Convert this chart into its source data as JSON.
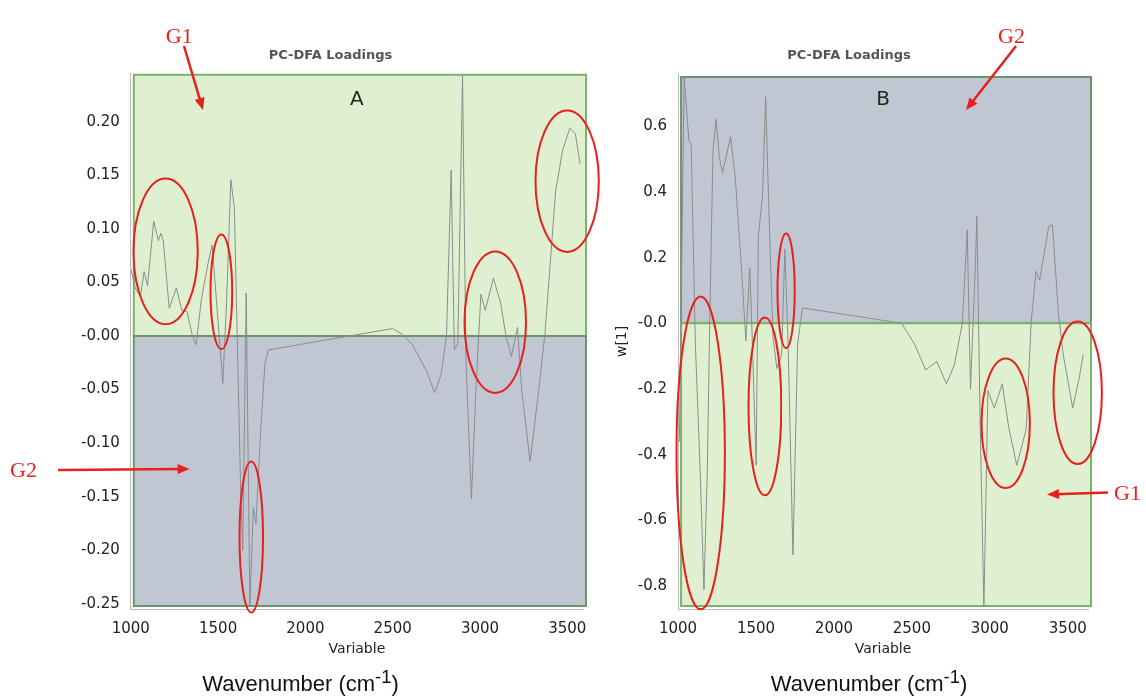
{
  "chart_data": [
    {
      "type": "line",
      "title": "PC-DFA Loadings",
      "xlabel": "Variable",
      "x": [
        1000,
        1025,
        1055,
        1076,
        1096,
        1131,
        1158,
        1172,
        1186,
        1220,
        1261,
        1292,
        1322,
        1353,
        1374,
        1404,
        1445,
        1466,
        1527,
        1548,
        1573,
        1593,
        1630,
        1641,
        1661,
        1682,
        1702,
        1717,
        1743,
        1768,
        1788,
        2500,
        2551,
        2613,
        2695,
        2740,
        2777,
        2808,
        2835,
        2853,
        2873,
        2900,
        2920,
        2951,
        2976,
        3005,
        3030,
        3077,
        3118,
        3149,
        3180,
        3215,
        3240,
        3287,
        3331,
        3372,
        3433,
        3474,
        3515,
        3546,
        3573
      ],
      "series": [
        {
          "color": "#8c8c8c",
          "values": [
            0.063,
            0.045,
            0.037,
            0.06,
            0.047,
            0.107,
            0.089,
            0.096,
            0.089,
            0.026,
            0.045,
            0.024,
            0.023,
            0,
            -0.008,
            0.034,
            0.07,
            0.085,
            -0.044,
            0.03,
            0.146,
            0.12,
            -0.15,
            -0.2,
            0.04,
            -0.252,
            -0.16,
            -0.175,
            -0.09,
            -0.026,
            -0.013,
            0.007,
            0.002,
            -0.008,
            -0.033,
            -0.053,
            -0.036,
            0,
            0.155,
            -0.013,
            -0.007,
            0.244,
            -0.026,
            -0.152,
            -0.052,
            0.039,
            0.024,
            0.054,
            0.031,
            0,
            -0.019,
            0.008,
            -0.052,
            -0.117,
            -0.058,
            0.002,
            0.135,
            0.174,
            0.194,
            0.189,
            0.161
          ]
        }
      ],
      "xlim": [
        1000,
        3590
      ],
      "ylim": [
        -0.255,
        0.245
      ],
      "xticks": [
        1000,
        1500,
        2000,
        2500,
        3000,
        3500
      ],
      "yticks": [
        {
          "value": -0.25,
          "label": "-0.25"
        },
        {
          "value": -0.2,
          "label": "-0.20"
        },
        {
          "value": -0.15,
          "label": "-0.15"
        },
        {
          "value": -0.1,
          "label": "-0.10"
        },
        {
          "value": -0.05,
          "label": "-0.05"
        },
        {
          "value": 0,
          "label": "-0.00"
        },
        {
          "value": 0.05,
          "label": "0.05"
        },
        {
          "value": 0.1,
          "label": "0.10"
        },
        {
          "value": 0.15,
          "label": "0.15"
        },
        {
          "value": 0.2,
          "label": "0.20"
        }
      ],
      "bands": [
        {
          "axis": "y",
          "from": 0,
          "to": 0.244,
          "color": "#dff0d0",
          "label": "G1"
        },
        {
          "axis": "y",
          "from": -0.252,
          "to": 0,
          "color": "#c0c7d3",
          "label": "G2"
        }
      ],
      "annotations": [
        "A",
        "Wavenumber (cm$^{-1}$)"
      ],
      "legend": false,
      "marker": "none"
    },
    {
      "type": "line",
      "title": "PC-DFA Loadings",
      "xlabel": "Variable",
      "ylabel": "w[1]",
      "x": [
        1008,
        1039,
        1070,
        1084,
        1111,
        1142,
        1166,
        1187,
        1203,
        1224,
        1244,
        1265,
        1285,
        1337,
        1367,
        1408,
        1435,
        1460,
        1474,
        1501,
        1515,
        1542,
        1562,
        1583,
        1609,
        1634,
        1665,
        1685,
        1706,
        1737,
        1767,
        1798,
        2434,
        2517,
        2589,
        2660,
        2722,
        2773,
        2824,
        2855,
        2876,
        2906,
        2917,
        2937,
        2962,
        2988,
        3029,
        3080,
        3121,
        3173,
        3214,
        3234,
        3265,
        3296,
        3320,
        3378,
        3402,
        3440,
        3471,
        3532,
        3573,
        3600
      ],
      "series": [
        {
          "color": "#8c8c8c",
          "values": [
            -0.36,
            0.747,
            0.553,
            0.547,
            -0.063,
            -0.453,
            -0.81,
            -0.463,
            0,
            0.526,
            0.621,
            0.505,
            0.458,
            0.568,
            0.442,
            0.158,
            -0.053,
            0.168,
            -0.021,
            -0.432,
            0.263,
            0.389,
            0.689,
            0.337,
            -0.042,
            -0.137,
            -0.095,
            0.226,
            -0.063,
            -0.705,
            -0.063,
            0.047,
            0,
            -0.063,
            -0.142,
            -0.116,
            -0.184,
            -0.126,
            0,
            0.284,
            -0.2,
            0.158,
            0.326,
            -0.274,
            -0.863,
            -0.205,
            -0.258,
            -0.184,
            -0.316,
            -0.432,
            -0.358,
            -0.321,
            0,
            0.158,
            0.132,
            0.295,
            0.3,
            0.032,
            -0.095,
            -0.258,
            -0.168,
            -0.095
          ]
        }
      ],
      "xlim": [
        1000,
        3630
      ],
      "ylim": [
        -0.87,
        0.76
      ],
      "xticks": [
        1000,
        1500,
        2000,
        2500,
        3000,
        3500
      ],
      "yticks": [
        -0.8,
        -0.6,
        -0.4,
        -0.2,
        {
          "value": 0,
          "label": "-0.0"
        },
        0.2,
        0.4,
        0.6
      ],
      "bands": [
        {
          "axis": "y",
          "from": 0,
          "to": 0.75,
          "color": "#c0c7d3",
          "label": "G2"
        },
        {
          "axis": "y",
          "from": -0.86,
          "to": 0,
          "color": "#dff0d0",
          "label": "G1"
        }
      ],
      "annotations": [
        "B",
        "Wavenumber (cm$^{-1}$)"
      ],
      "legend": false,
      "marker": "none"
    }
  ]
}
